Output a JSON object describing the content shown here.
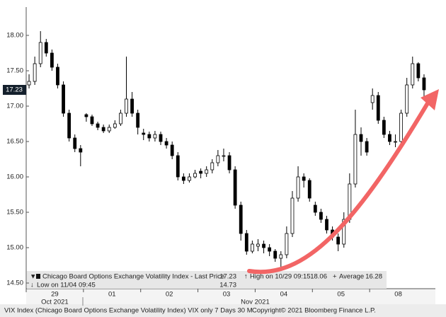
{
  "chart_data": {
    "type": "candlestick",
    "categories": [
      "29",
      "01",
      "02",
      "03",
      "04",
      "05",
      "08"
    ],
    "months": [
      "Oct 2021",
      "Nov 2021"
    ],
    "ylim": [
      14.42,
      18.4
    ],
    "yticks": [
      {
        "value": 14.5,
        "label": "14.50"
      },
      {
        "value": 15,
        "label": "15.00"
      },
      {
        "value": 15.5,
        "label": "15.50"
      },
      {
        "value": 16,
        "label": "16.00"
      },
      {
        "value": 16.5,
        "label": "16.50"
      },
      {
        "value": 17,
        "label": "17.00"
      },
      {
        "value": 17.5,
        "label": "17.50"
      },
      {
        "value": 18,
        "label": "18.00"
      }
    ],
    "grid": false,
    "up_color": "#ffffff",
    "down_color": "#000000",
    "days": [
      {
        "open": [
          17.3,
          17.35,
          17.6,
          17.9,
          17.75,
          17.55,
          17.3,
          16.9,
          16.55,
          16.4
        ],
        "high": [
          17.45,
          17.7,
          18.06,
          17.95,
          17.8,
          17.6,
          17.35,
          16.95,
          16.6,
          16.45
        ],
        "low": [
          17.25,
          17.3,
          17.55,
          17.7,
          17.5,
          17.25,
          16.85,
          16.5,
          16.35,
          16.15
        ],
        "close": [
          17.35,
          17.6,
          17.9,
          17.75,
          17.55,
          17.3,
          16.9,
          16.55,
          16.4,
          16.35
        ]
      },
      {
        "open": [
          16.88,
          16.85,
          16.75,
          16.7,
          16.65,
          16.7,
          16.75,
          16.9,
          17.1,
          16.9
        ],
        "high": [
          16.9,
          16.88,
          16.78,
          16.74,
          16.74,
          16.8,
          16.95,
          17.7,
          17.2,
          16.95
        ],
        "low": [
          16.78,
          16.72,
          16.66,
          16.62,
          16.62,
          16.68,
          16.72,
          16.85,
          16.85,
          16.6
        ],
        "close": [
          16.85,
          16.75,
          16.7,
          16.65,
          16.7,
          16.75,
          16.9,
          17.1,
          16.9,
          16.7
        ]
      },
      {
        "open": [
          16.62,
          16.6,
          16.55,
          16.6,
          16.5,
          16.45,
          16.3,
          16.0,
          15.95,
          16.0
        ],
        "high": [
          16.68,
          16.64,
          16.65,
          16.64,
          16.55,
          16.5,
          16.35,
          16.05,
          16.05,
          16.1
        ],
        "low": [
          16.52,
          16.5,
          16.5,
          16.45,
          16.4,
          16.25,
          15.95,
          15.9,
          15.92,
          15.98
        ],
        "close": [
          16.6,
          16.55,
          16.6,
          16.5,
          16.45,
          16.3,
          16.0,
          15.95,
          16.0,
          16.05
        ]
      },
      {
        "open": [
          16.08,
          16.05,
          16.1,
          16.2,
          16.3,
          16.3,
          16.1,
          15.6,
          15.2,
          14.95
        ],
        "high": [
          16.12,
          16.15,
          16.25,
          16.38,
          16.4,
          16.35,
          16.15,
          15.65,
          15.25,
          15.1
        ],
        "low": [
          15.98,
          16.0,
          16.05,
          16.15,
          16.22,
          16.05,
          15.55,
          15.1,
          14.9,
          14.92
        ],
        "close": [
          16.05,
          16.1,
          16.2,
          16.3,
          16.3,
          16.1,
          15.6,
          15.2,
          14.95,
          15.05
        ]
      },
      {
        "open": [
          15.02,
          15.05,
          15.0,
          14.95,
          14.85,
          14.9,
          15.2,
          15.7,
          16.0,
          15.95
        ],
        "high": [
          15.12,
          15.1,
          15.05,
          14.98,
          14.95,
          15.3,
          15.8,
          16.15,
          16.05,
          15.98
        ],
        "low": [
          14.95,
          14.92,
          14.88,
          14.8,
          14.73,
          14.85,
          15.15,
          15.65,
          15.85,
          15.65
        ],
        "close": [
          15.05,
          15.0,
          14.95,
          14.85,
          14.9,
          15.2,
          15.7,
          16.0,
          15.95,
          15.7
        ]
      },
      {
        "open": [
          15.6,
          15.5,
          15.4,
          15.25,
          15.15,
          15.05,
          15.4,
          15.9,
          16.6,
          16.5
        ],
        "high": [
          15.65,
          15.55,
          15.45,
          15.3,
          15.2,
          15.5,
          16.05,
          16.95,
          16.7,
          16.55
        ],
        "low": [
          15.45,
          15.35,
          15.2,
          15.1,
          14.95,
          15.0,
          15.35,
          15.85,
          16.3,
          16.3
        ],
        "close": [
          15.5,
          15.4,
          15.25,
          15.15,
          15.05,
          15.4,
          15.9,
          16.6,
          16.5,
          16.35
        ]
      },
      {
        "open": [
          17.05,
          17.15,
          16.8,
          16.6,
          16.5,
          16.5,
          16.9,
          17.3,
          17.6,
          17.4
        ],
        "high": [
          17.25,
          17.2,
          16.85,
          16.65,
          16.6,
          16.95,
          17.4,
          17.7,
          17.62,
          17.45
        ],
        "low": [
          16.95,
          16.75,
          16.55,
          16.45,
          16.42,
          16.45,
          16.85,
          17.25,
          17.35,
          17.08
        ],
        "close": [
          17.15,
          16.8,
          16.6,
          16.5,
          16.5,
          16.9,
          17.3,
          17.6,
          17.4,
          17.23
        ]
      }
    ],
    "legend": {
      "name": "Chicago Board Options Exchange Volatility Index - Last Price",
      "last_price": 17.23,
      "high_label": "High on 10/29 09:15",
      "high": 18.06,
      "average_label": "Average",
      "average": 16.28,
      "low_label": "Low on 11/04 09:45",
      "low": 14.73
    },
    "footer_left": "VIX Index (Chicago Board Options Exchange Volatility Index) VIX only 7 Days 30 M",
    "footer_right": "Copyright© 2021 Bloomberg Finance L.P."
  }
}
